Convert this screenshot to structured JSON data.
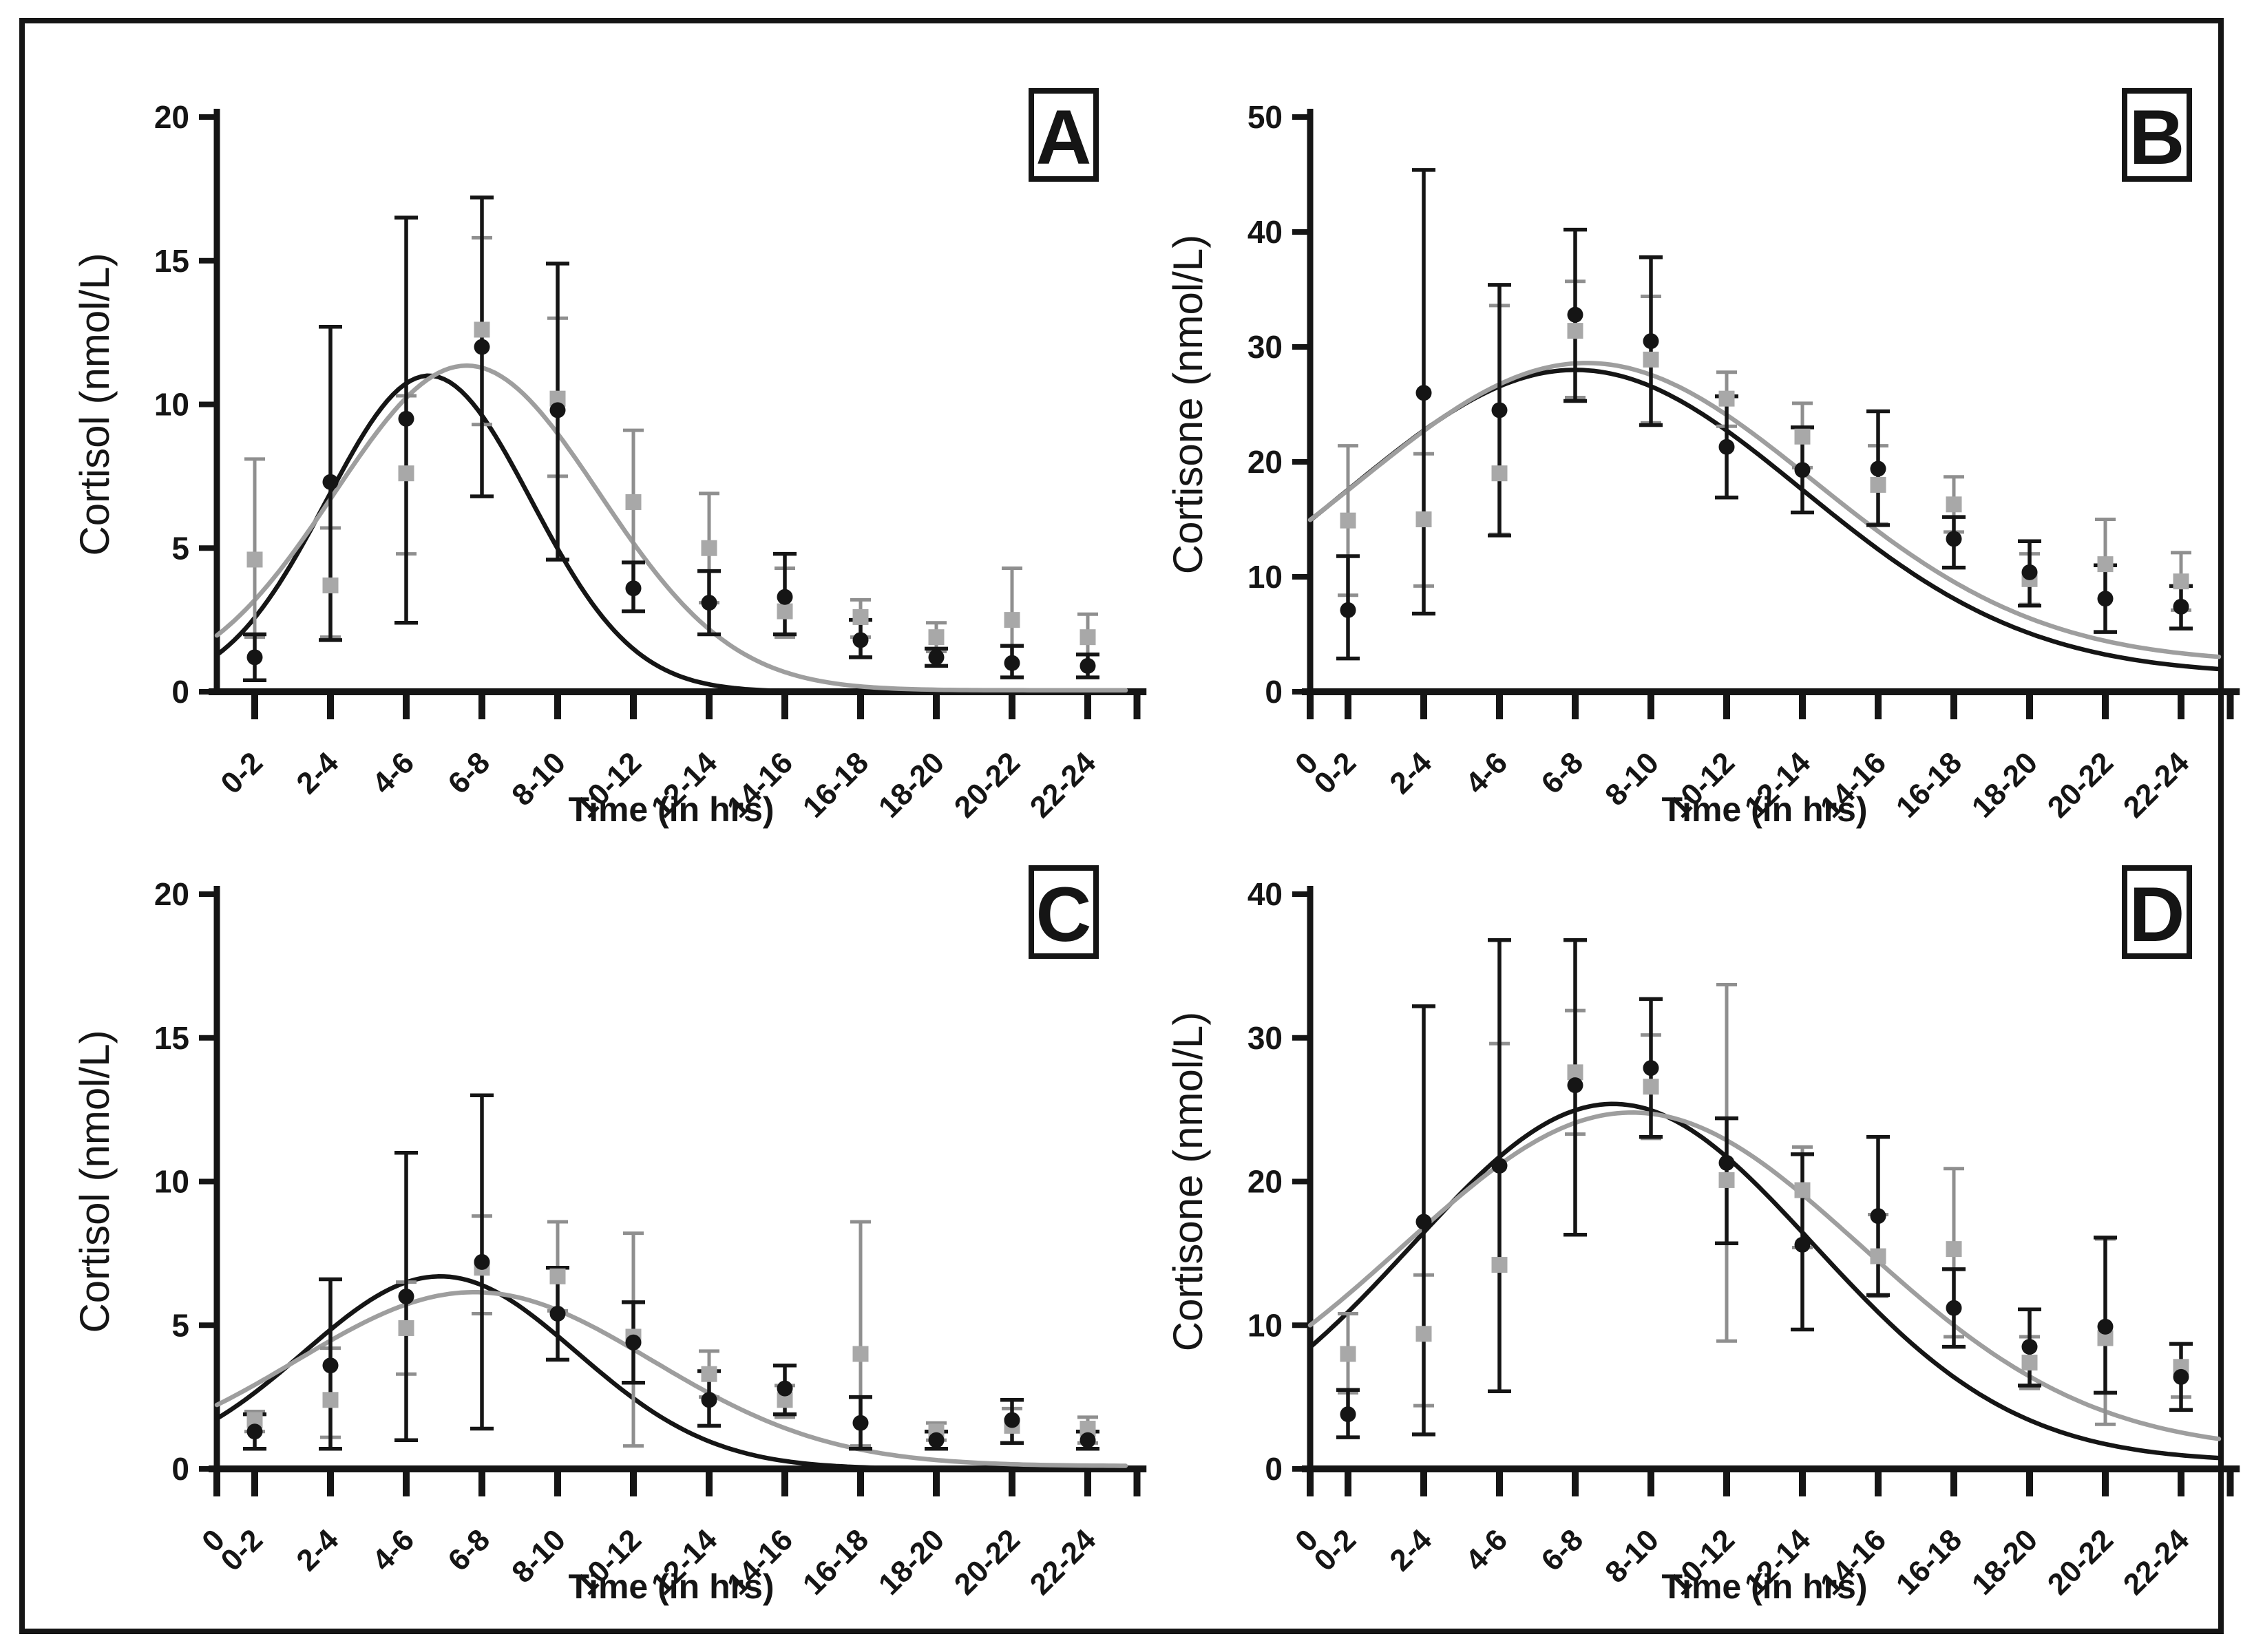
{
  "figure": {
    "background": "#ffffff",
    "border_color": "#151515",
    "ink_color": "#151515",
    "gray_marker_color": "#a8a8a8",
    "gray_errbar_color": "#8f8f8f",
    "gray_curve_color": "#9e9e9e"
  },
  "chart_data": [
    {
      "id": "A",
      "type": "scatter",
      "panel_label": "A",
      "ylabel": "Cortisol (nmol/L)",
      "xlabel": "Time (in hrs)",
      "ylim": [
        0,
        20
      ],
      "ytick_step": 5,
      "origin_label": "",
      "show_origin_label": false,
      "grid": false,
      "legend_position": "none",
      "categories": [
        "0-2",
        "2-4",
        "4-6",
        "6-8",
        "8-10",
        "10-12",
        "12-14",
        "14-16",
        "16-18",
        "18-20",
        "20-22",
        "22-24"
      ],
      "series": [
        {
          "name": "gray-squares",
          "marker": "square",
          "values": [
            4.6,
            3.7,
            7.6,
            12.6,
            10.2,
            6.6,
            5.0,
            2.8,
            2.6,
            1.9,
            2.5,
            1.9
          ],
          "err_lo": [
            1.9,
            1.9,
            4.8,
            9.3,
            7.5,
            4.5,
            3.1,
            1.9,
            1.9,
            1.4,
            0.5,
            0.5
          ],
          "err_hi": [
            8.1,
            5.7,
            10.3,
            15.8,
            13.0,
            9.1,
            6.9,
            4.3,
            3.2,
            2.4,
            4.3,
            2.7
          ]
        },
        {
          "name": "black-circles",
          "marker": "circle",
          "values": [
            1.2,
            7.3,
            9.5,
            12.0,
            9.8,
            3.6,
            3.1,
            3.3,
            1.8,
            1.2,
            1.0,
            0.9
          ],
          "err_lo": [
            0.4,
            1.8,
            2.4,
            6.8,
            4.6,
            2.8,
            2.0,
            2.0,
            1.2,
            0.9,
            0.5,
            0.5
          ],
          "err_hi": [
            2.0,
            12.7,
            16.5,
            17.2,
            14.9,
            4.5,
            4.2,
            4.8,
            2.5,
            1.5,
            1.6,
            1.3
          ]
        }
      ],
      "curves": [
        {
          "name": "black-fit",
          "color_role": "black",
          "base": 0.0,
          "amp": 11.0,
          "mu": 5.6,
          "sigma": 2.7
        },
        {
          "name": "gray-fit",
          "color_role": "gray",
          "base": 0.05,
          "amp": 11.3,
          "mu": 6.6,
          "sigma": 3.5
        }
      ]
    },
    {
      "id": "B",
      "type": "scatter",
      "panel_label": "B",
      "ylabel": "Cortisone (nmol/L)",
      "xlabel": "Time (in hrs)",
      "ylim": [
        0,
        50
      ],
      "ytick_step": 10,
      "origin_label": "0",
      "show_origin_label": true,
      "grid": false,
      "legend_position": "none",
      "categories": [
        "0-2",
        "2-4",
        "4-6",
        "6-8",
        "8-10",
        "10-12",
        "12-14",
        "14-16",
        "16-18",
        "18-20",
        "20-22",
        "22-24"
      ],
      "series": [
        {
          "name": "gray-squares",
          "marker": "square",
          "values": [
            14.9,
            15.0,
            19.0,
            31.4,
            28.9,
            25.5,
            22.2,
            18.0,
            16.3,
            9.8,
            11.1,
            9.6
          ],
          "err_lo": [
            8.4,
            9.2,
            13.7,
            25.6,
            23.4,
            23.1,
            19.5,
            14.6,
            13.9,
            7.6,
            5.2,
            7.1
          ],
          "err_hi": [
            21.4,
            20.7,
            33.6,
            35.7,
            34.4,
            27.8,
            25.1,
            21.4,
            18.7,
            12.0,
            15.0,
            12.1
          ]
        },
        {
          "name": "black-circles",
          "marker": "circle",
          "values": [
            7.1,
            26.0,
            24.5,
            32.8,
            30.5,
            21.3,
            19.3,
            19.4,
            13.3,
            10.4,
            8.1,
            7.4
          ],
          "err_lo": [
            2.9,
            6.8,
            13.6,
            25.3,
            23.2,
            16.9,
            15.6,
            14.5,
            10.8,
            7.5,
            5.2,
            5.5
          ],
          "err_hi": [
            11.8,
            45.4,
            35.4,
            40.2,
            37.8,
            25.7,
            23.0,
            24.4,
            15.2,
            13.1,
            11.0,
            9.2
          ]
        }
      ],
      "curves": [
        {
          "name": "black-fit",
          "color_role": "black",
          "base": 1.5,
          "amp": 26.5,
          "mu": 7.0,
          "sigma": 6.0
        },
        {
          "name": "gray-fit",
          "color_role": "gray",
          "base": 2.5,
          "amp": 26.1,
          "mu": 7.3,
          "sigma": 6.0
        }
      ]
    },
    {
      "id": "C",
      "type": "scatter",
      "panel_label": "C",
      "ylabel": "Cortisol (nmol/L)",
      "xlabel": "Time (in hrs)",
      "ylim": [
        0,
        20
      ],
      "ytick_step": 5,
      "origin_label": "0",
      "show_origin_label": true,
      "grid": false,
      "legend_position": "none",
      "categories": [
        "0-2",
        "2-4",
        "4-6",
        "6-8",
        "8-10",
        "10-12",
        "12-14",
        "14-16",
        "16-18",
        "18-20",
        "20-22",
        "22-24"
      ],
      "series": [
        {
          "name": "gray-squares",
          "marker": "square",
          "values": [
            1.7,
            2.4,
            4.9,
            7.0,
            6.7,
            4.6,
            3.3,
            2.4,
            4.0,
            1.3,
            1.5,
            1.4
          ],
          "err_lo": [
            1.3,
            1.1,
            3.3,
            5.4,
            5.5,
            0.8,
            2.5,
            1.8,
            0.8,
            1.0,
            0.9,
            0.9
          ],
          "err_hi": [
            2.0,
            4.2,
            6.5,
            8.8,
            8.6,
            8.2,
            4.1,
            2.9,
            8.6,
            1.6,
            2.1,
            1.8
          ]
        },
        {
          "name": "black-circles",
          "marker": "circle",
          "values": [
            1.3,
            3.6,
            6.0,
            7.2,
            5.4,
            4.4,
            2.4,
            2.8,
            1.6,
            1.0,
            1.7,
            1.0
          ],
          "err_lo": [
            0.7,
            0.7,
            1.0,
            1.4,
            3.8,
            3.0,
            1.5,
            1.9,
            0.7,
            0.7,
            0.9,
            0.7
          ],
          "err_hi": [
            1.9,
            6.6,
            11.0,
            13.0,
            7.0,
            5.8,
            3.4,
            3.6,
            2.5,
            1.3,
            2.4,
            1.3
          ]
        }
      ],
      "curves": [
        {
          "name": "black-fit",
          "color_role": "black",
          "base": 0.0,
          "amp": 6.7,
          "mu": 5.9,
          "sigma": 3.6
        },
        {
          "name": "gray-fit",
          "color_role": "gray",
          "base": 0.1,
          "amp": 6.05,
          "mu": 6.8,
          "sigma": 4.7
        }
      ]
    },
    {
      "id": "D",
      "type": "scatter",
      "panel_label": "D",
      "ylabel": "Cortisone (nmol/L)",
      "xlabel": "Time (in hrs)",
      "ylim": [
        0,
        40
      ],
      "ytick_step": 10,
      "origin_label": "0",
      "show_origin_label": true,
      "grid": false,
      "legend_position": "none",
      "categories": [
        "0-2",
        "2-4",
        "4-6",
        "6-8",
        "8-10",
        "10-12",
        "12-14",
        "14-16",
        "16-18",
        "18-20",
        "20-22",
        "22-24"
      ],
      "series": [
        {
          "name": "gray-squares",
          "marker": "square",
          "values": [
            8.0,
            9.4,
            14.2,
            27.6,
            26.6,
            20.1,
            19.4,
            14.8,
            15.3,
            7.4,
            9.1,
            7.1
          ],
          "err_lo": [
            5.3,
            4.4,
            5.4,
            23.3,
            23.0,
            8.9,
            15.4,
            12.0,
            9.2,
            5.6,
            3.1,
            5.0
          ],
          "err_hi": [
            10.8,
            13.5,
            29.6,
            31.9,
            30.2,
            33.7,
            22.4,
            17.7,
            20.9,
            9.2,
            16.0,
            8.7
          ]
        },
        {
          "name": "black-circles",
          "marker": "circle",
          "values": [
            3.8,
            17.2,
            21.1,
            26.7,
            27.9,
            21.3,
            15.6,
            17.6,
            11.2,
            8.5,
            9.9,
            6.4
          ],
          "err_lo": [
            2.2,
            2.4,
            5.4,
            16.3,
            23.1,
            15.7,
            9.7,
            12.1,
            8.5,
            5.8,
            5.3,
            4.1
          ],
          "err_hi": [
            5.5,
            32.2,
            36.8,
            36.8,
            32.7,
            24.4,
            21.9,
            23.1,
            13.9,
            11.1,
            16.1,
            8.7
          ]
        }
      ],
      "curves": [
        {
          "name": "black-fit",
          "color_role": "black",
          "base": 0.5,
          "amp": 24.9,
          "mu": 8.0,
          "sigma": 5.3
        },
        {
          "name": "gray-fit",
          "color_role": "gray",
          "base": 1.2,
          "amp": 23.6,
          "mu": 8.5,
          "sigma": 6.05
        }
      ]
    }
  ]
}
